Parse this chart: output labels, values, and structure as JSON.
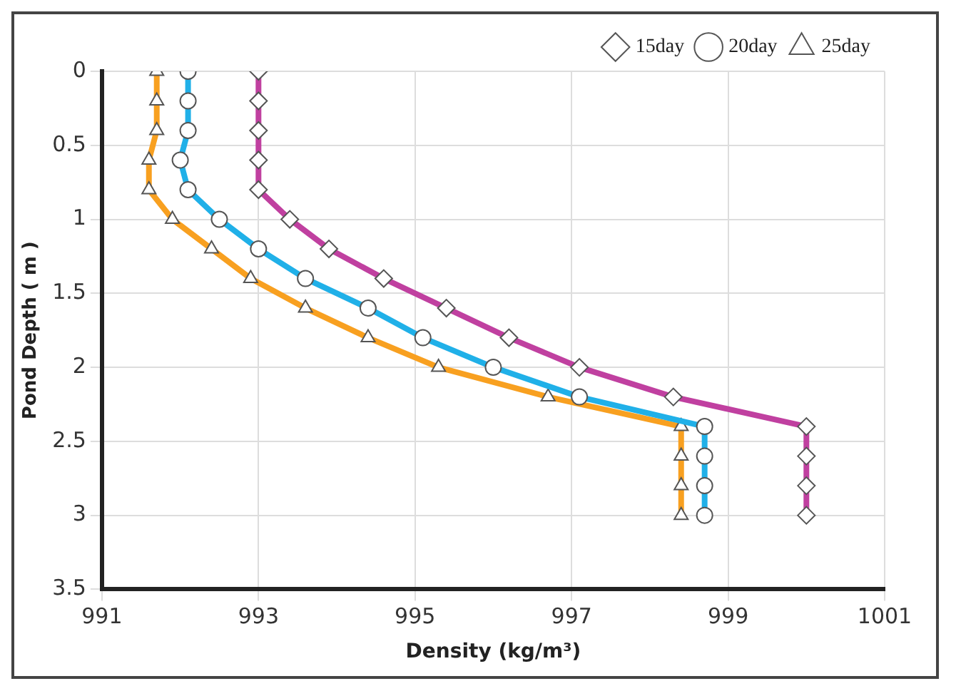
{
  "chart_data": {
    "type": "line",
    "xlabel": "Density (kg/m³)",
    "ylabel": "Pond Depth ( m )",
    "xlim": [
      991,
      1001
    ],
    "xticks": [
      991,
      993,
      995,
      997,
      999,
      1001
    ],
    "ylim": [
      3.5,
      0
    ],
    "yticks": [
      0,
      0.5,
      1,
      1.5,
      2,
      2.5,
      3,
      3.5
    ],
    "grid": true,
    "legend": "top right",
    "line_style": "solid",
    "series": [
      {
        "name": "15day",
        "color": "#c040a0",
        "marker": "diamond",
        "x": [
          993.0,
          993.0,
          993.0,
          993.0,
          993.0,
          993.4,
          993.9,
          994.6,
          995.4,
          996.2,
          997.1,
          998.3,
          1000.0,
          1000.0,
          1000.0,
          1000.0
        ],
        "values": [
          0,
          0.2,
          0.4,
          0.6,
          0.8,
          1.0,
          1.2,
          1.4,
          1.6,
          1.8,
          2.0,
          2.2,
          2.4,
          2.6,
          2.8,
          3.0
        ]
      },
      {
        "name": "20day",
        "color": "#20b0e8",
        "marker": "circle",
        "x": [
          992.1,
          992.1,
          992.1,
          992.0,
          992.1,
          992.5,
          993.0,
          993.6,
          994.4,
          995.1,
          996.0,
          997.1,
          998.7,
          998.7,
          998.7,
          998.7
        ],
        "values": [
          0,
          0.2,
          0.4,
          0.6,
          0.8,
          1.0,
          1.2,
          1.4,
          1.6,
          1.8,
          2.0,
          2.2,
          2.4,
          2.6,
          2.8,
          3.0
        ]
      },
      {
        "name": "25day",
        "color": "#f8a020",
        "marker": "triangle",
        "x": [
          991.7,
          991.7,
          991.7,
          991.6,
          991.6,
          991.9,
          992.4,
          992.9,
          993.6,
          994.4,
          995.3,
          996.7,
          998.4,
          998.4,
          998.4,
          998.4
        ],
        "values": [
          0,
          0.2,
          0.4,
          0.6,
          0.8,
          1.0,
          1.2,
          1.4,
          1.6,
          1.8,
          2.0,
          2.2,
          2.4,
          2.6,
          2.8,
          3.0
        ]
      }
    ]
  }
}
